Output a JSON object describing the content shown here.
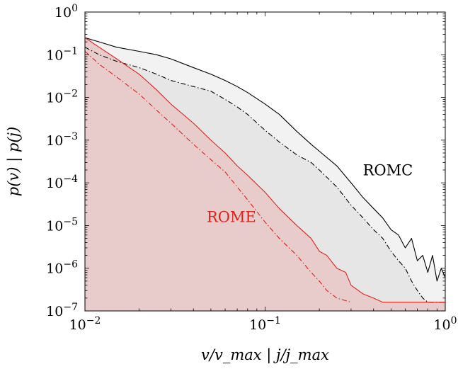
{
  "chart_data": {
    "type": "line",
    "xscale": "log",
    "yscale": "log",
    "xlim": [
      0.01,
      1
    ],
    "ylim": [
      1e-07,
      1
    ],
    "xlabel": "v/v_max | j/j_max",
    "ylabel": "p(v) | p(j)",
    "grid": false,
    "x_ticks": [
      {
        "value": 0.01,
        "base": "10",
        "exp": "−2"
      },
      {
        "value": 0.1,
        "base": "10",
        "exp": "−1"
      },
      {
        "value": 1,
        "base": "10",
        "exp": "0"
      }
    ],
    "y_ticks": [
      {
        "value": 1e-07,
        "base": "10",
        "exp": "−7"
      },
      {
        "value": 1e-06,
        "base": "10",
        "exp": "−6"
      },
      {
        "value": 1e-05,
        "base": "10",
        "exp": "−5"
      },
      {
        "value": 0.0001,
        "base": "10",
        "exp": "−4"
      },
      {
        "value": 0.001,
        "base": "10",
        "exp": "−3"
      },
      {
        "value": 0.01,
        "base": "10",
        "exp": "−2"
      },
      {
        "value": 0.1,
        "base": "10",
        "exp": "−1"
      },
      {
        "value": 1,
        "base": "10",
        "exp": "0"
      }
    ],
    "annotations": [
      {
        "text": "ROMC",
        "x": 0.48,
        "y": 0.00015,
        "color": "#000000"
      },
      {
        "text": "ROME",
        "x": 0.065,
        "y": 1.2e-05,
        "color": "#e0201b"
      }
    ],
    "series": [
      {
        "group": "ROMC",
        "quantity": "v",
        "style": "solid",
        "color": "#000000",
        "fill": "#f2f2f2",
        "x": [
          0.01,
          0.012,
          0.015,
          0.02,
          0.025,
          0.03,
          0.04,
          0.05,
          0.06,
          0.07,
          0.08,
          0.1,
          0.12,
          0.15,
          0.18,
          0.2,
          0.25,
          0.3,
          0.35,
          0.4,
          0.45,
          0.5,
          0.55,
          0.6,
          0.65,
          0.7,
          0.75,
          0.8,
          0.85,
          0.9,
          0.95,
          1.0
        ],
        "y": [
          0.25,
          0.2,
          0.15,
          0.12,
          0.1,
          0.08,
          0.05,
          0.035,
          0.025,
          0.018,
          0.013,
          0.007,
          0.004,
          0.0016,
          0.0008,
          0.00055,
          0.00025,
          0.0001,
          4.5e-05,
          2.5e-05,
          1.5e-05,
          8e-06,
          6e-06,
          3e-06,
          5e-06,
          1.5e-06,
          2e-06,
          8e-07,
          2e-06,
          5e-07,
          1e-06,
          6e-07
        ]
      },
      {
        "group": "ROMC",
        "quantity": "j",
        "style": "dashdot",
        "color": "#000000",
        "fill": "#e6e6e6",
        "x": [
          0.01,
          0.012,
          0.015,
          0.02,
          0.025,
          0.03,
          0.04,
          0.05,
          0.06,
          0.07,
          0.08,
          0.1,
          0.12,
          0.15,
          0.18,
          0.2,
          0.25,
          0.3,
          0.35,
          0.4,
          0.45,
          0.5,
          0.55,
          0.6,
          0.65,
          0.7,
          0.75,
          0.8,
          1.0
        ],
        "y": [
          0.15,
          0.1,
          0.07,
          0.05,
          0.035,
          0.025,
          0.018,
          0.014,
          0.009,
          0.006,
          0.004,
          0.0017,
          0.0009,
          0.00045,
          0.0003,
          0.0002,
          8e-05,
          3e-05,
          1.5e-05,
          8e-06,
          5e-06,
          2.5e-06,
          1.5e-06,
          1e-06,
          5e-07,
          3e-07,
          2e-07,
          1.6e-07,
          1.6e-07
        ]
      },
      {
        "group": "ROME",
        "quantity": "v",
        "style": "solid",
        "color": "#e0201b",
        "fill": "#e8cccc",
        "x": [
          0.01,
          0.012,
          0.015,
          0.02,
          0.025,
          0.03,
          0.04,
          0.05,
          0.06,
          0.07,
          0.08,
          0.1,
          0.12,
          0.15,
          0.18,
          0.2,
          0.22,
          0.25,
          0.28,
          0.3,
          0.35,
          0.4,
          0.45,
          1.0
        ],
        "y": [
          0.25,
          0.15,
          0.08,
          0.035,
          0.015,
          0.007,
          0.0025,
          0.001,
          0.0005,
          0.00025,
          0.00015,
          6e-05,
          2.5e-05,
          1e-05,
          5e-06,
          2.5e-06,
          2e-06,
          1e-06,
          8e-07,
          4e-07,
          2.5e-07,
          2e-07,
          1.6e-07,
          1.6e-07
        ]
      },
      {
        "group": "ROME",
        "quantity": "j",
        "style": "dashdot",
        "color": "#e0201b",
        "fill": "#e8cccc",
        "x": [
          0.01,
          0.012,
          0.015,
          0.02,
          0.025,
          0.03,
          0.04,
          0.05,
          0.06,
          0.07,
          0.08,
          0.1,
          0.12,
          0.15,
          0.18,
          0.2,
          0.22,
          0.25,
          0.3
        ],
        "y": [
          0.12,
          0.06,
          0.03,
          0.012,
          0.005,
          0.0025,
          0.0008,
          0.00035,
          0.00018,
          8e-05,
          4e-05,
          1.2e-05,
          5e-06,
          2e-06,
          8e-07,
          5e-07,
          3e-07,
          2e-07,
          1.6e-07
        ]
      }
    ]
  }
}
